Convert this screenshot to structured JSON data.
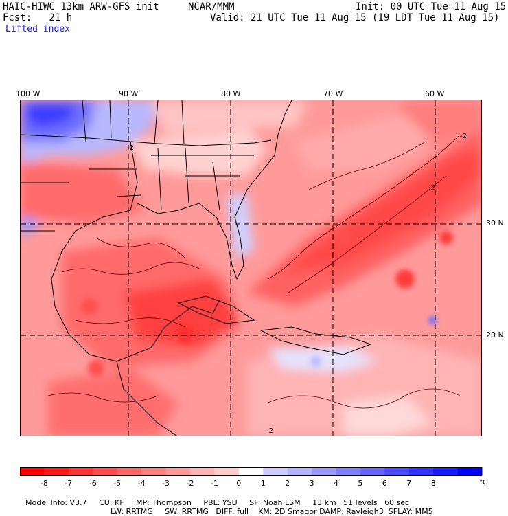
{
  "header": {
    "model": "HAIC-HIWC 13km ARW-GFS init",
    "org": "NCAR/MMM",
    "init": "Init: 00 UTC Tue 11 Aug 15",
    "fcst": "Fcst:   21 h",
    "valid": "Valid: 21 UTC Tue 11 Aug 15 (19 LDT Tue 11 Aug 15)",
    "field": "Lifted index"
  },
  "map": {
    "lon_labels": [
      "100 W",
      "90 W",
      "80 W",
      "70 W",
      "60 W"
    ],
    "lat_labels": [
      "30 N",
      "20 N"
    ],
    "contour_labels": [
      "-2",
      "-2",
      "-2",
      "-2"
    ]
  },
  "colorbar": {
    "ticks": [
      "-8",
      "-7",
      "-6",
      "-5",
      "-4",
      "-3",
      "-2",
      "-1",
      "0",
      "1",
      "2",
      "3",
      "4",
      "5",
      "6",
      "7",
      "8"
    ],
    "unit": "°C",
    "colors": [
      "#ff0000",
      "#ff1a1a",
      "#ff3333",
      "#ff4d4d",
      "#ff6666",
      "#ff8080",
      "#ff9999",
      "#ffb3b3",
      "#ffcccc",
      "#ffffff",
      "#ccccff",
      "#b3b3ff",
      "#9999ff",
      "#7f7fff",
      "#6666ff",
      "#4c4cff",
      "#3333ff",
      "#1a1aff",
      "#0000ff"
    ]
  },
  "footer": {
    "line1": [
      "Model Info: V3.7",
      "CU: KF",
      "MP: Thompson",
      "PBL: YSU",
      "SF: Noah LSM",
      "13 km",
      "51 levels",
      "60 sec"
    ],
    "line2": [
      "LW: RRTMG",
      "SW: RRTMG",
      "DIFF: full",
      "KM: 2D Smagor",
      "DAMP: Rayleigh3",
      "SFLAY: MM5"
    ]
  }
}
